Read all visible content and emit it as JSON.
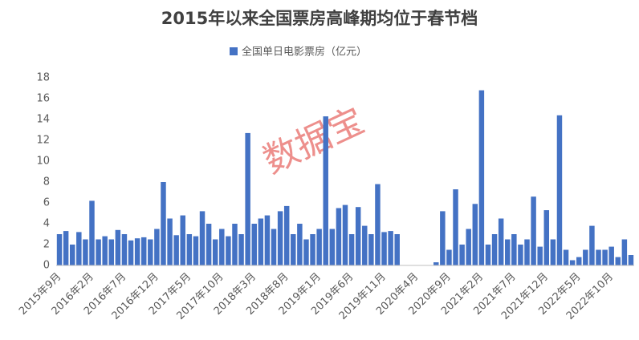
{
  "chart_data": {
    "type": "bar",
    "title": "2015年以来全国票房高峰期均位于春节档",
    "watermark": "数据宝",
    "legend": "top",
    "grid": false,
    "series": [
      {
        "name": "全国单日电影票房（亿元）",
        "color": "#4472c4",
        "values": [
          3.0,
          3.3,
          2.0,
          3.2,
          2.5,
          6.2,
          2.5,
          2.8,
          2.5,
          3.4,
          3.0,
          2.4,
          2.6,
          2.7,
          2.5,
          3.5,
          8.0,
          4.5,
          2.9,
          4.8,
          3.0,
          2.8,
          5.2,
          4.0,
          2.5,
          3.5,
          2.8,
          4.0,
          3.0,
          12.7,
          4.0,
          4.5,
          4.8,
          3.5,
          5.2,
          5.7,
          3.0,
          4.0,
          2.5,
          3.0,
          3.5,
          14.3,
          3.5,
          5.5,
          5.8,
          3.0,
          5.6,
          3.8,
          3.0,
          7.8,
          3.2,
          3.3,
          3.0,
          0,
          0,
          0,
          0,
          0,
          0.3,
          5.2,
          1.5,
          7.3,
          2.0,
          3.5,
          5.9,
          16.8,
          2.0,
          3.0,
          4.5,
          2.5,
          3.0,
          2.0,
          2.5,
          6.6,
          1.8,
          5.3,
          2.5,
          14.4,
          1.5,
          0.5,
          0.8,
          1.5,
          3.8,
          1.5,
          1.5,
          1.8,
          0.8,
          2.5,
          1.0
        ]
      }
    ],
    "categories": [
      "2015年9月",
      null,
      null,
      null,
      null,
      "2016年2月",
      null,
      null,
      null,
      null,
      "2016年7月",
      null,
      null,
      null,
      null,
      "2016年12月",
      null,
      null,
      null,
      null,
      "2017年5月",
      null,
      null,
      null,
      null,
      "2017年10月",
      null,
      null,
      null,
      null,
      "2018年3月",
      null,
      null,
      null,
      null,
      "2018年8月",
      null,
      null,
      null,
      null,
      "2019年1月",
      null,
      null,
      null,
      null,
      "2019年6月",
      null,
      null,
      null,
      null,
      "2019年11月",
      null,
      null,
      null,
      null,
      "2020年4月",
      null,
      null,
      null,
      null,
      "2020年9月",
      null,
      null,
      null,
      null,
      "2021年2月",
      null,
      null,
      null,
      null,
      "2021年7月",
      null,
      null,
      null,
      null,
      "2021年12月",
      null,
      null,
      null,
      null,
      "2022年5月",
      null,
      null,
      null,
      null,
      "2022年10月",
      null,
      null,
      null
    ],
    "ylim": [
      0,
      18
    ],
    "yticks": [
      0,
      2,
      4,
      6,
      8,
      10,
      12,
      14,
      16,
      18
    ]
  }
}
